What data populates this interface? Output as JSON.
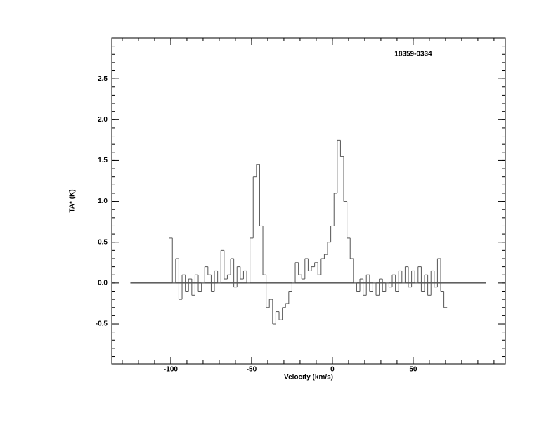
{
  "chart_data": {
    "type": "step-line",
    "title": "18359-0334",
    "xlabel": "Velocity (km/s)",
    "ylabel": "TA* (K)",
    "xlim": [
      -136.5,
      107
    ],
    "ylim": [
      -0.99,
      3.0
    ],
    "xticks": [
      -100,
      -50,
      0,
      50
    ],
    "yticks": [
      -0.5,
      0.0,
      0.5,
      1.0,
      1.5,
      2.0,
      2.5
    ],
    "xminor_step": 10,
    "yminor_step": 0.1,
    "baseline": {
      "value": 0,
      "xlim": [
        -125,
        95
      ]
    },
    "color": "#555555",
    "x": [
      -100,
      -98,
      -96,
      -94,
      -92,
      -90,
      -88,
      -86,
      -84,
      -82,
      -80,
      -78,
      -76,
      -74,
      -72,
      -70,
      -68,
      -66,
      -64,
      -62,
      -60,
      -58,
      -56,
      -54,
      -52,
      -50,
      -48,
      -46,
      -44,
      -42,
      -40,
      -38,
      -36,
      -34,
      -32,
      -30,
      -28,
      -26,
      -24,
      -22,
      -20,
      -18,
      -16,
      -14,
      -12,
      -10,
      -8,
      -6,
      -4,
      -2,
      0,
      2,
      4,
      6,
      8,
      10,
      12,
      14,
      16,
      18,
      20,
      22,
      24,
      26,
      28,
      30,
      32,
      34,
      36,
      38,
      40,
      42,
      44,
      46,
      48,
      50,
      52,
      54,
      56,
      58,
      60,
      62,
      64,
      66,
      68,
      70
    ],
    "values": [
      0.55,
      0.0,
      0.3,
      -0.2,
      0.1,
      -0.1,
      0.05,
      -0.15,
      0.1,
      -0.1,
      0.0,
      0.2,
      0.1,
      -0.1,
      0.15,
      0.0,
      0.4,
      0.05,
      0.1,
      0.3,
      -0.05,
      0.2,
      0.05,
      0.15,
      0.0,
      0.55,
      1.3,
      1.45,
      0.7,
      0.1,
      -0.3,
      -0.2,
      -0.5,
      -0.35,
      -0.45,
      -0.3,
      -0.25,
      -0.1,
      0.0,
      0.25,
      0.1,
      0.05,
      0.3,
      0.15,
      0.2,
      0.25,
      0.1,
      0.3,
      0.35,
      0.5,
      0.7,
      1.1,
      1.75,
      1.55,
      1.0,
      0.55,
      0.3,
      0.0,
      -0.1,
      0.05,
      -0.15,
      0.1,
      -0.1,
      0.0,
      -0.15,
      0.05,
      -0.1,
      0.0,
      -0.05,
      0.1,
      -0.1,
      0.15,
      0.0,
      0.2,
      -0.05,
      0.15,
      0.0,
      0.2,
      -0.1,
      0.1,
      -0.15,
      0.15,
      -0.05,
      0.3,
      -0.1,
      -0.3
    ]
  }
}
